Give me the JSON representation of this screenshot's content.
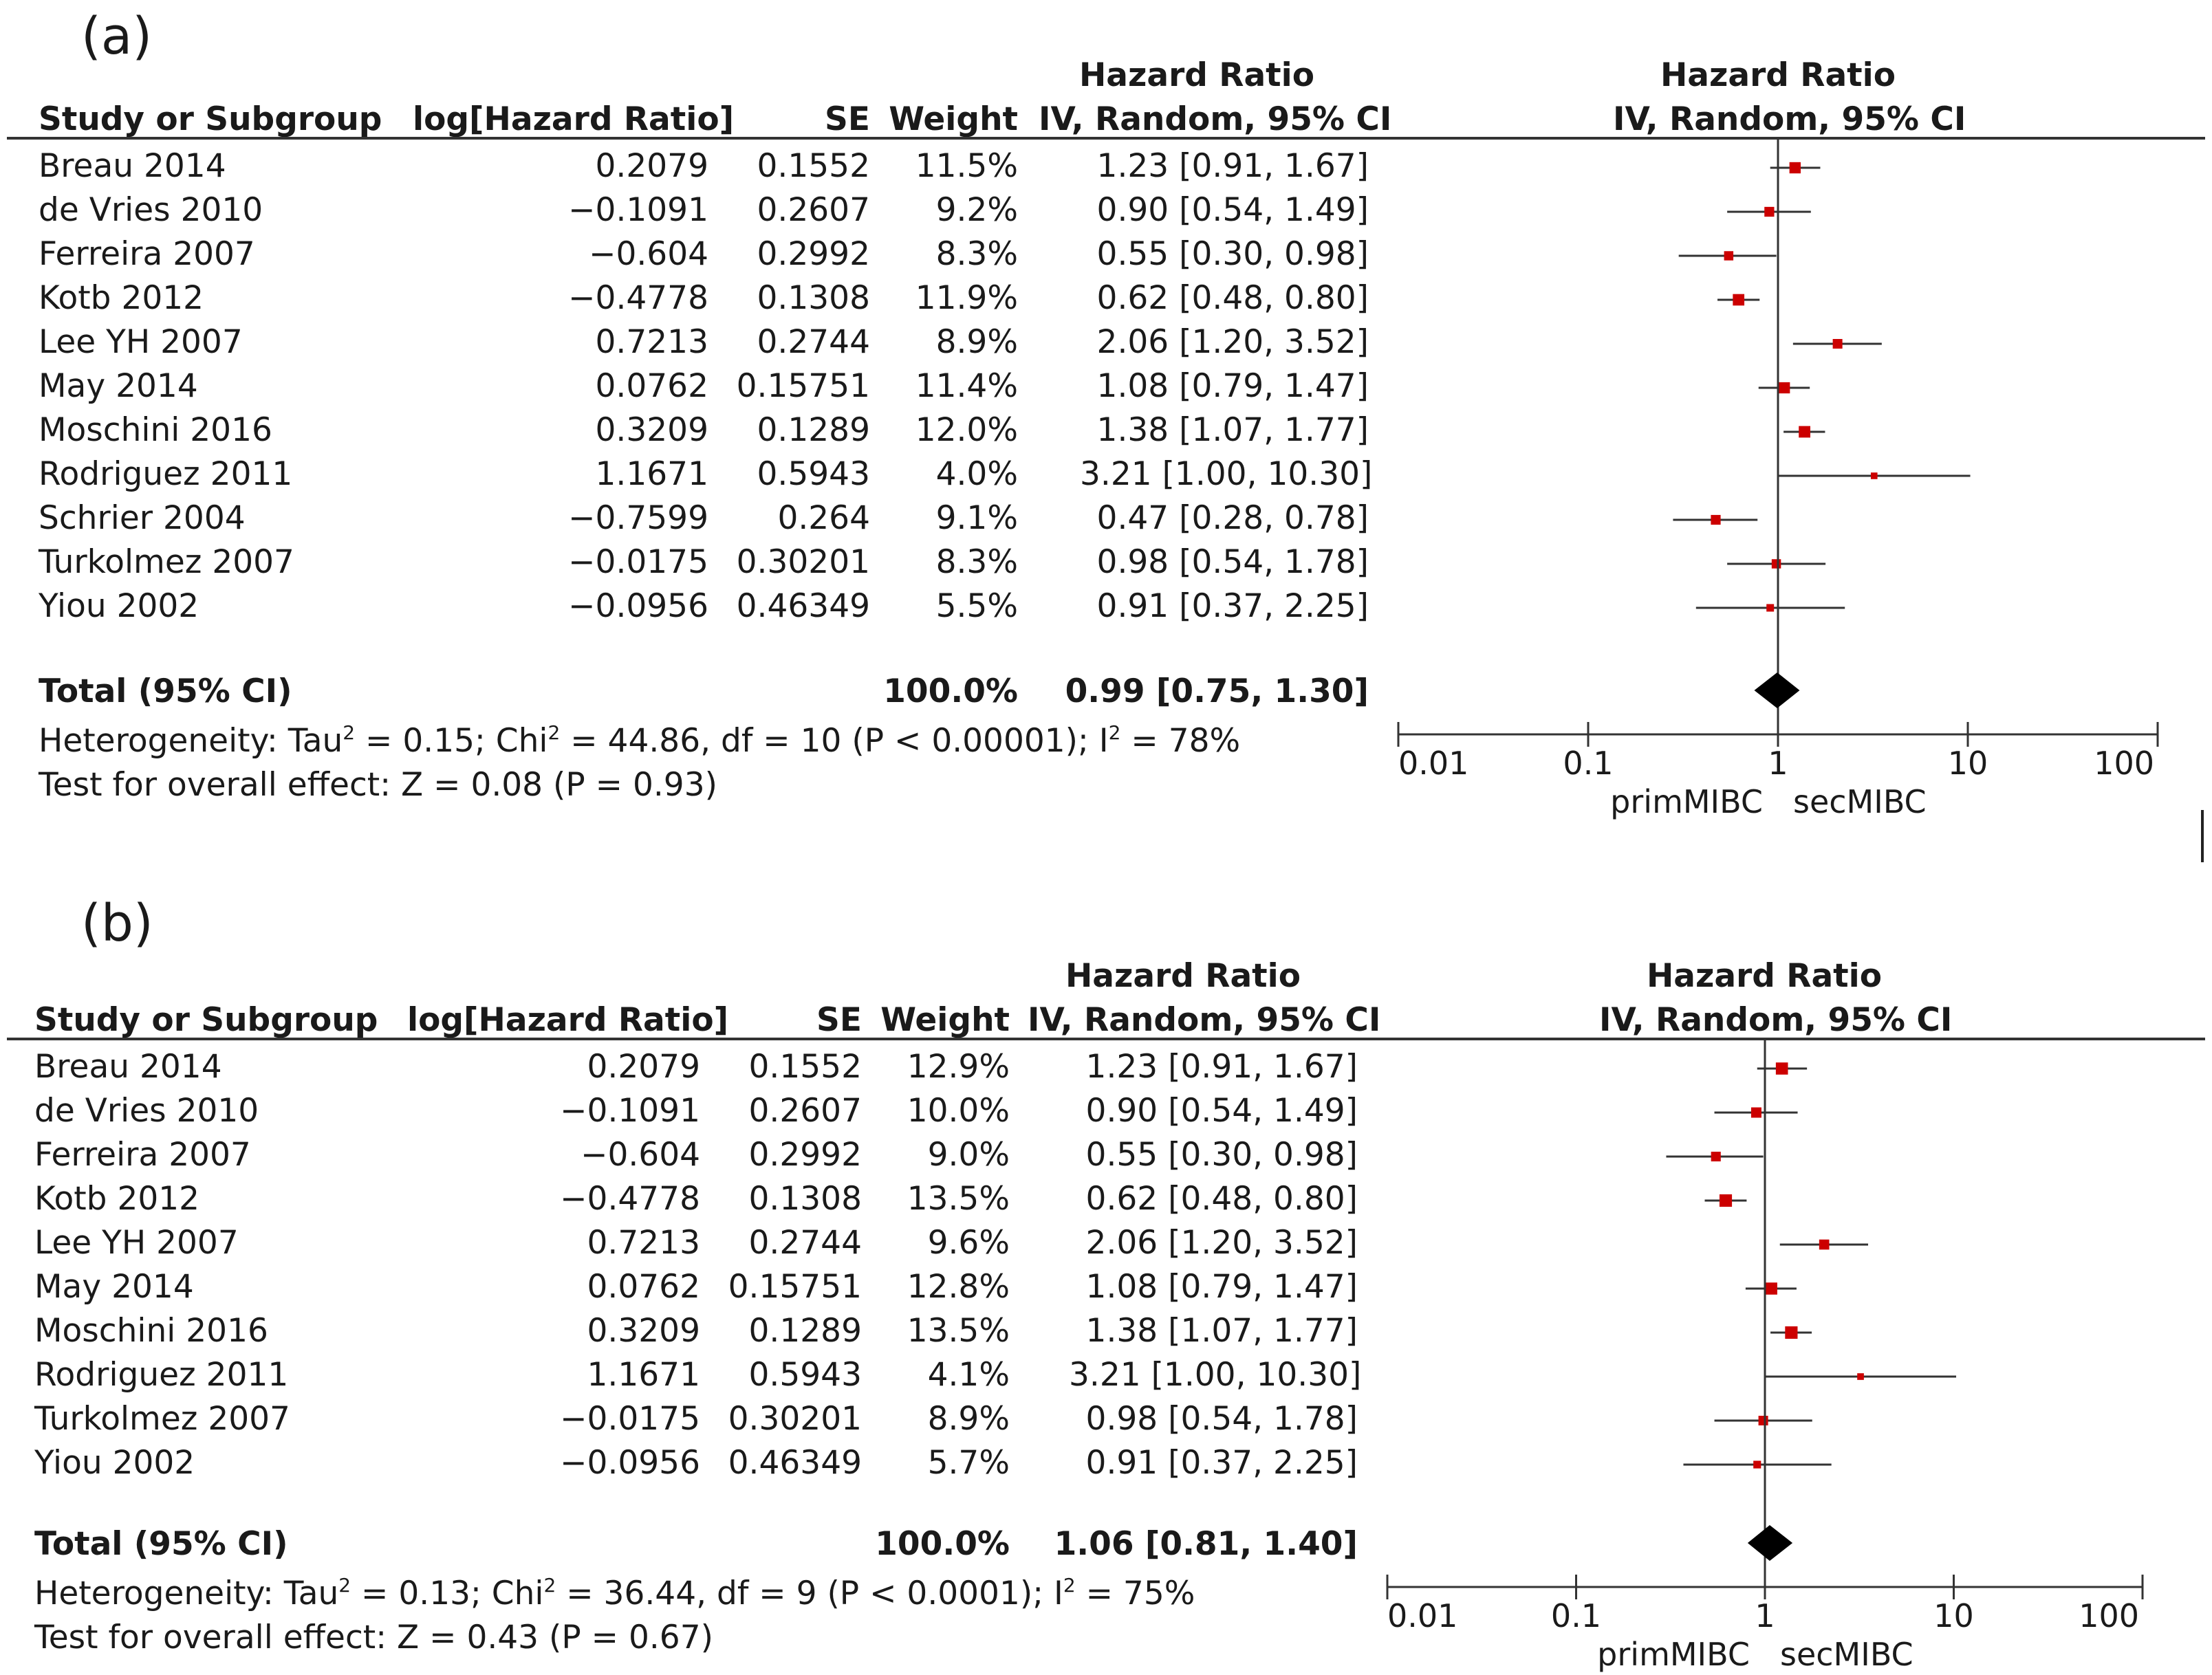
{
  "chart_data": [
    {
      "type": "forest",
      "panel_label": "(a)",
      "columns": {
        "study": "Study or Subgroup",
        "log_hr": "log[Hazard Ratio]",
        "se": "SE",
        "weight": "Weight",
        "hr_top": "Hazard Ratio",
        "hr_method": "IV, Random, 95% CI",
        "plot_top": "Hazard Ratio",
        "plot_method": "IV, Random, 95% CI"
      },
      "studies": [
        {
          "name": "Breau 2014",
          "log_hr": "0.2079",
          "se": "0.1552",
          "weight": "11.5%",
          "ci_text": "1.23 [0.91, 1.67]",
          "hr": 1.23,
          "lo": 0.91,
          "hi": 1.67,
          "w": 11.5
        },
        {
          "name": "de Vries 2010",
          "log_hr": "−0.1091",
          "se": "0.2607",
          "weight": "9.2%",
          "ci_text": "0.90 [0.54, 1.49]",
          "hr": 0.9,
          "lo": 0.54,
          "hi": 1.49,
          "w": 9.2
        },
        {
          "name": "Ferreira 2007",
          "log_hr": "−0.604",
          "se": "0.2992",
          "weight": "8.3%",
          "ci_text": "0.55 [0.30, 0.98]",
          "hr": 0.55,
          "lo": 0.3,
          "hi": 0.98,
          "w": 8.3
        },
        {
          "name": "Kotb 2012",
          "log_hr": "−0.4778",
          "se": "0.1308",
          "weight": "11.9%",
          "ci_text": "0.62 [0.48, 0.80]",
          "hr": 0.62,
          "lo": 0.48,
          "hi": 0.8,
          "w": 11.9
        },
        {
          "name": "Lee YH 2007",
          "log_hr": "0.7213",
          "se": "0.2744",
          "weight": "8.9%",
          "ci_text": "2.06 [1.20, 3.52]",
          "hr": 2.06,
          "lo": 1.2,
          "hi": 3.52,
          "w": 8.9
        },
        {
          "name": "May 2014",
          "log_hr": "0.0762",
          "se": "0.15751",
          "weight": "11.4%",
          "ci_text": "1.08 [0.79, 1.47]",
          "hr": 1.08,
          "lo": 0.79,
          "hi": 1.47,
          "w": 11.4
        },
        {
          "name": "Moschini 2016",
          "log_hr": "0.3209",
          "se": "0.1289",
          "weight": "12.0%",
          "ci_text": "1.38 [1.07, 1.77]",
          "hr": 1.38,
          "lo": 1.07,
          "hi": 1.77,
          "w": 12.0
        },
        {
          "name": "Rodriguez 2011",
          "log_hr": "1.1671",
          "se": "0.5943",
          "weight": "4.0%",
          "ci_text": "3.21 [1.00, 10.30]",
          "hr": 3.21,
          "lo": 1.0,
          "hi": 10.3,
          "w": 4.0
        },
        {
          "name": "Schrier 2004",
          "log_hr": "−0.7599",
          "se": "0.264",
          "weight": "9.1%",
          "ci_text": "0.47 [0.28, 0.78]",
          "hr": 0.47,
          "lo": 0.28,
          "hi": 0.78,
          "w": 9.1
        },
        {
          "name": "Turkolmez 2007",
          "log_hr": "−0.0175",
          "se": "0.30201",
          "weight": "8.3%",
          "ci_text": "0.98 [0.54, 1.78]",
          "hr": 0.98,
          "lo": 0.54,
          "hi": 1.78,
          "w": 8.3
        },
        {
          "name": "Yiou 2002",
          "log_hr": "−0.0956",
          "se": "0.46349",
          "weight": "5.5%",
          "ci_text": "0.91 [0.37, 2.25]",
          "hr": 0.91,
          "lo": 0.37,
          "hi": 2.25,
          "w": 5.5
        }
      ],
      "total": {
        "label": "Total (95% CI)",
        "weight": "100.0%",
        "ci_text": "0.99 [0.75, 1.30]",
        "hr": 0.99,
        "lo": 0.75,
        "hi": 1.3
      },
      "heterogeneity": {
        "prefix": "Heterogeneity: Tau",
        "tau2": " = 0.15; Chi",
        "chi_rest": " = 44.86, df = 10 (P < 0.00001); I",
        "i2": " = 78%"
      },
      "overall_effect": "Test for overall effect: Z = 0.08 (P = 0.93)",
      "x_axis": {
        "scale": "log",
        "ticks": [
          "0.01",
          "0.1",
          "1",
          "10",
          "100"
        ],
        "tick_values": [
          0.01,
          0.1,
          1,
          10,
          100
        ]
      },
      "favours_left": "primMIBC",
      "favours_right": "secMIBC"
    },
    {
      "type": "forest",
      "panel_label": "(b)",
      "columns": {
        "study": "Study or Subgroup",
        "log_hr": "log[Hazard Ratio]",
        "se": "SE",
        "weight": "Weight",
        "hr_top": "Hazard Ratio",
        "hr_method": "IV, Random, 95% CI",
        "plot_top": "Hazard Ratio",
        "plot_method": "IV, Random, 95% CI"
      },
      "studies": [
        {
          "name": "Breau 2014",
          "log_hr": "0.2079",
          "se": "0.1552",
          "weight": "12.9%",
          "ci_text": "1.23 [0.91, 1.67]",
          "hr": 1.23,
          "lo": 0.91,
          "hi": 1.67,
          "w": 12.9
        },
        {
          "name": "de Vries 2010",
          "log_hr": "−0.1091",
          "se": "0.2607",
          "weight": "10.0%",
          "ci_text": "0.90 [0.54, 1.49]",
          "hr": 0.9,
          "lo": 0.54,
          "hi": 1.49,
          "w": 10.0
        },
        {
          "name": "Ferreira 2007",
          "log_hr": "−0.604",
          "se": "0.2992",
          "weight": "9.0%",
          "ci_text": "0.55 [0.30, 0.98]",
          "hr": 0.55,
          "lo": 0.3,
          "hi": 0.98,
          "w": 9.0
        },
        {
          "name": "Kotb 2012",
          "log_hr": "−0.4778",
          "se": "0.1308",
          "weight": "13.5%",
          "ci_text": "0.62 [0.48, 0.80]",
          "hr": 0.62,
          "lo": 0.48,
          "hi": 0.8,
          "w": 13.5
        },
        {
          "name": "Lee YH 2007",
          "log_hr": "0.7213",
          "se": "0.2744",
          "weight": "9.6%",
          "ci_text": "2.06 [1.20, 3.52]",
          "hr": 2.06,
          "lo": 1.2,
          "hi": 3.52,
          "w": 9.6
        },
        {
          "name": "May 2014",
          "log_hr": "0.0762",
          "se": "0.15751",
          "weight": "12.8%",
          "ci_text": "1.08 [0.79, 1.47]",
          "hr": 1.08,
          "lo": 0.79,
          "hi": 1.47,
          "w": 12.8
        },
        {
          "name": "Moschini 2016",
          "log_hr": "0.3209",
          "se": "0.1289",
          "weight": "13.5%",
          "ci_text": "1.38 [1.07, 1.77]",
          "hr": 1.38,
          "lo": 1.07,
          "hi": 1.77,
          "w": 13.5
        },
        {
          "name": "Rodriguez 2011",
          "log_hr": "1.1671",
          "se": "0.5943",
          "weight": "4.1%",
          "ci_text": "3.21 [1.00, 10.30]",
          "hr": 3.21,
          "lo": 1.0,
          "hi": 10.3,
          "w": 4.1
        },
        {
          "name": "Turkolmez 2007",
          "log_hr": "−0.0175",
          "se": "0.30201",
          "weight": "8.9%",
          "ci_text": "0.98 [0.54, 1.78]",
          "hr": 0.98,
          "lo": 0.54,
          "hi": 1.78,
          "w": 8.9
        },
        {
          "name": "Yiou 2002",
          "log_hr": "−0.0956",
          "se": "0.46349",
          "weight": "5.7%",
          "ci_text": "0.91 [0.37, 2.25]",
          "hr": 0.91,
          "lo": 0.37,
          "hi": 2.25,
          "w": 5.7
        }
      ],
      "total": {
        "label": "Total (95% CI)",
        "weight": "100.0%",
        "ci_text": "1.06 [0.81, 1.40]",
        "hr": 1.06,
        "lo": 0.81,
        "hi": 1.4
      },
      "heterogeneity": {
        "prefix": "Heterogeneity: Tau",
        "tau2": " = 0.13; Chi",
        "chi_rest": " = 36.44, df = 9 (P < 0.0001); I",
        "i2": " = 75%"
      },
      "overall_effect": "Test for overall effect: Z = 0.43 (P = 0.67)",
      "x_axis": {
        "scale": "log",
        "ticks": [
          "0.01",
          "0.1",
          "1",
          "10",
          "100"
        ],
        "tick_values": [
          0.01,
          0.1,
          1,
          10,
          100
        ]
      },
      "favours_left": "primMIBC",
      "favours_right": "secMIBC"
    }
  ],
  "colors": {
    "square": "#cc0000",
    "diamond": "#000000",
    "lines": "#333333"
  }
}
